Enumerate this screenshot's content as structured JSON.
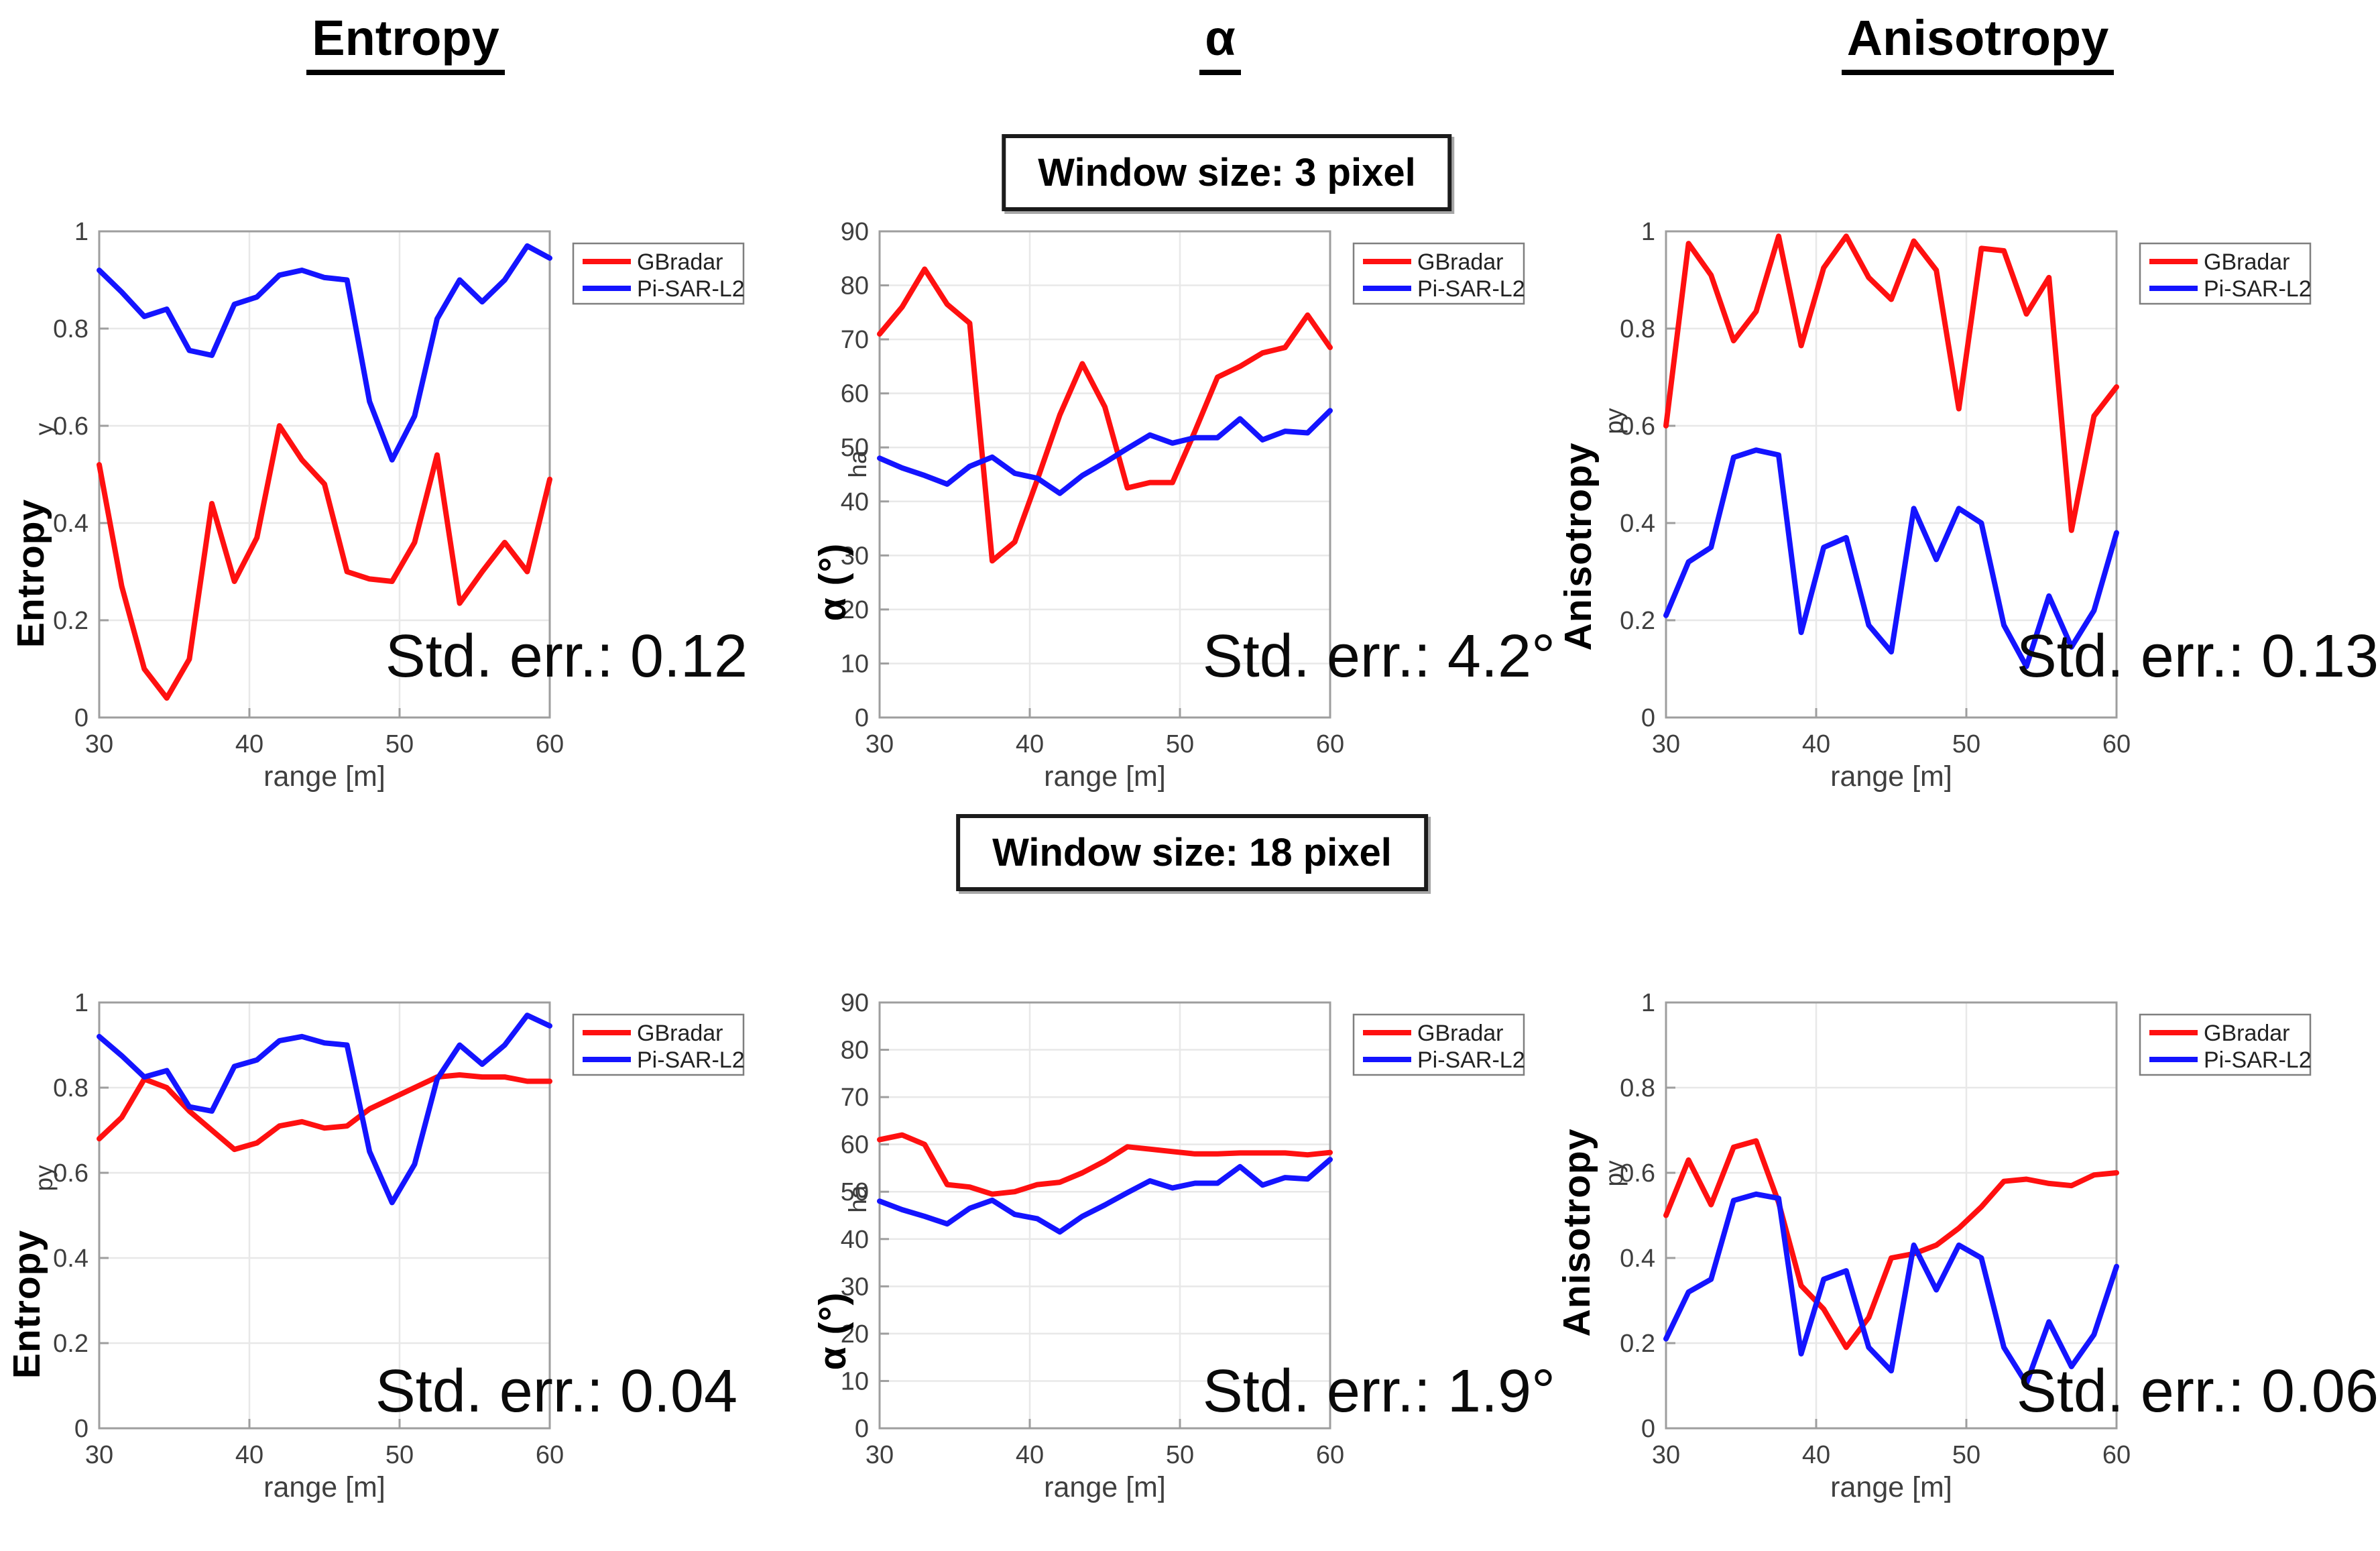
{
  "figure": {
    "column_titles": [
      {
        "text": "Entropy"
      },
      {
        "text": "α"
      },
      {
        "text": "Anisotropy"
      }
    ],
    "window_labels": [
      {
        "text": "Window size: 3 pixel"
      },
      {
        "text": "Window size: 18 pixel"
      }
    ]
  },
  "style": {
    "red": "#ff1010",
    "blue": "#1414ff",
    "grid": "#e8e8e8",
    "axis": "#9e9e9e",
    "tick_label": "#3f3f3f",
    "legend_border": "#7f7f7f",
    "legend_text": "#222222"
  },
  "chart_data": [
    {
      "type": "line",
      "window": "3 pixel",
      "quantity": "Entropy",
      "ylabel_bold": "Entropy",
      "ylabel_fragment": "y",
      "xlabel": "range [m]",
      "std_err_label": "Std. err.: 0.12",
      "xlim": [
        30,
        60
      ],
      "ylim": [
        0,
        1
      ],
      "xticks": [
        30,
        40,
        50,
        60
      ],
      "yticks": [
        0,
        0.2,
        0.4,
        0.6,
        0.8,
        1
      ],
      "x": [
        30,
        31.5,
        33,
        34.5,
        36,
        37.5,
        39,
        40.5,
        42,
        43.5,
        45,
        46.5,
        48,
        49.5,
        51,
        52.5,
        54,
        55.5,
        57,
        58.5,
        60
      ],
      "series": [
        {
          "name": "GBradar",
          "color": "#ff1010",
          "values": [
            0.52,
            0.27,
            0.1,
            0.04,
            0.12,
            0.44,
            0.28,
            0.37,
            0.6,
            0.53,
            0.48,
            0.3,
            0.285,
            0.28,
            0.36,
            0.54,
            0.235,
            0.3,
            0.36,
            0.3,
            0.49
          ]
        },
        {
          "name": "Pi-SAR-L2",
          "color": "#1414ff",
          "values": [
            0.92,
            0.875,
            0.825,
            0.84,
            0.755,
            0.745,
            0.85,
            0.865,
            0.91,
            0.92,
            0.905,
            0.9,
            0.65,
            0.53,
            0.62,
            0.82,
            0.9,
            0.855,
            0.9,
            0.97,
            0.945
          ]
        }
      ]
    },
    {
      "type": "line",
      "window": "3 pixel",
      "quantity": "alpha",
      "ylabel_bold": "α (°)",
      "ylabel_fragment": "ha",
      "xlabel": "range [m]",
      "std_err_label": "Std. err.: 4.2°",
      "xlim": [
        30,
        60
      ],
      "ylim": [
        0,
        90
      ],
      "xticks": [
        30,
        40,
        50,
        60
      ],
      "yticks": [
        0,
        10,
        20,
        30,
        40,
        50,
        60,
        70,
        80,
        90
      ],
      "x": [
        30,
        31.5,
        33,
        34.5,
        36,
        37.5,
        39,
        40.5,
        42,
        43.5,
        45,
        46.5,
        48,
        49.5,
        51,
        52.5,
        54,
        55.5,
        57,
        58.5,
        60
      ],
      "series": [
        {
          "name": "GBradar",
          "color": "#ff1010",
          "values": [
            71,
            76,
            83,
            76.5,
            73,
            29,
            32.5,
            44,
            56,
            65.5,
            57.5,
            42.5,
            43.5,
            43.5,
            53,
            63,
            65,
            67.5,
            68.5,
            74.5,
            68.5
          ]
        },
        {
          "name": "Pi-SAR-L2",
          "color": "#1414ff",
          "values": [
            48,
            46.2,
            44.8,
            43.2,
            46.5,
            48.2,
            45.2,
            44.3,
            41.5,
            44.8,
            47.2,
            49.8,
            52.3,
            50.8,
            51.8,
            51.8,
            55.3,
            51.4,
            53,
            52.7,
            56.8
          ]
        }
      ]
    },
    {
      "type": "line",
      "window": "3 pixel",
      "quantity": "Anisotropy",
      "ylabel_bold": "Anisotropy",
      "ylabel_fragment": "py",
      "xlabel": "range [m]",
      "std_err_label": "Std. err.: 0.13",
      "xlim": [
        30,
        60
      ],
      "ylim": [
        0,
        1
      ],
      "xticks": [
        30,
        40,
        50,
        60
      ],
      "yticks": [
        0,
        0.2,
        0.4,
        0.6,
        0.8,
        1
      ],
      "x": [
        30,
        31.5,
        33,
        34.5,
        36,
        37.5,
        39,
        40.5,
        42,
        43.5,
        45,
        46.5,
        48,
        49.5,
        51,
        52.5,
        54,
        55.5,
        57,
        58.5,
        60
      ],
      "series": [
        {
          "name": "GBradar",
          "color": "#ff1010",
          "values": [
            0.6,
            0.975,
            0.91,
            0.775,
            0.835,
            0.99,
            0.765,
            0.925,
            0.99,
            0.905,
            0.86,
            0.98,
            0.92,
            0.635,
            0.965,
            0.96,
            0.83,
            0.905,
            0.385,
            0.62,
            0.68
          ]
        },
        {
          "name": "Pi-SAR-L2",
          "color": "#1414ff",
          "values": [
            0.21,
            0.32,
            0.35,
            0.535,
            0.55,
            0.54,
            0.175,
            0.35,
            0.37,
            0.19,
            0.135,
            0.43,
            0.325,
            0.43,
            0.4,
            0.19,
            0.105,
            0.25,
            0.145,
            0.22,
            0.38
          ]
        }
      ]
    },
    {
      "type": "line",
      "window": "18 pixel",
      "quantity": "Entropy",
      "ylabel_bold": "Entropy",
      "ylabel_fragment": "py",
      "xlabel": "range [m]",
      "std_err_label": "Std. err.: 0.04",
      "xlim": [
        30,
        60
      ],
      "ylim": [
        0,
        1
      ],
      "xticks": [
        30,
        40,
        50,
        60
      ],
      "yticks": [
        0,
        0.2,
        0.4,
        0.6,
        0.8,
        1
      ],
      "x": [
        30,
        31.5,
        33,
        34.5,
        36,
        37.5,
        39,
        40.5,
        42,
        43.5,
        45,
        46.5,
        48,
        49.5,
        51,
        52.5,
        54,
        55.5,
        57,
        58.5,
        60
      ],
      "series": [
        {
          "name": "GBradar",
          "color": "#ff1010",
          "values": [
            0.68,
            0.73,
            0.82,
            0.8,
            0.745,
            0.7,
            0.655,
            0.67,
            0.71,
            0.72,
            0.705,
            0.71,
            0.75,
            0.775,
            0.8,
            0.825,
            0.83,
            0.825,
            0.825,
            0.815,
            0.815
          ]
        },
        {
          "name": "Pi-SAR-L2",
          "color": "#1414ff",
          "values": [
            0.92,
            0.875,
            0.825,
            0.84,
            0.755,
            0.745,
            0.85,
            0.865,
            0.91,
            0.92,
            0.905,
            0.9,
            0.65,
            0.53,
            0.62,
            0.82,
            0.9,
            0.855,
            0.9,
            0.97,
            0.945
          ]
        }
      ]
    },
    {
      "type": "line",
      "window": "18 pixel",
      "quantity": "alpha",
      "ylabel_bold": "α (°)",
      "ylabel_fragment": "ha",
      "xlabel": "range [m]",
      "std_err_label": "Std. err.: 1.9°",
      "xlim": [
        30,
        60
      ],
      "ylim": [
        0,
        90
      ],
      "xticks": [
        30,
        40,
        50,
        60
      ],
      "yticks": [
        0,
        10,
        20,
        30,
        40,
        50,
        60,
        70,
        80,
        90
      ],
      "x": [
        30,
        31.5,
        33,
        34.5,
        36,
        37.5,
        39,
        40.5,
        42,
        43.5,
        45,
        46.5,
        48,
        49.5,
        51,
        52.5,
        54,
        55.5,
        57,
        58.5,
        60
      ],
      "series": [
        {
          "name": "GBradar",
          "color": "#ff1010",
          "values": [
            61,
            62,
            60,
            51.5,
            51,
            49.5,
            50,
            51.5,
            52,
            54,
            56.5,
            59.5,
            59,
            58.5,
            58,
            58,
            58.2,
            58.2,
            58.2,
            57.8,
            58.3
          ]
        },
        {
          "name": "Pi-SAR-L2",
          "color": "#1414ff",
          "values": [
            48,
            46.2,
            44.8,
            43.2,
            46.5,
            48.2,
            45.2,
            44.3,
            41.5,
            44.8,
            47.2,
            49.8,
            52.3,
            50.8,
            51.8,
            51.8,
            55.3,
            51.4,
            53,
            52.7,
            56.8
          ]
        }
      ]
    },
    {
      "type": "line",
      "window": "18 pixel",
      "quantity": "Anisotropy",
      "ylabel_bold": "Anisotropy",
      "ylabel_fragment": "py",
      "xlabel": "range [m]",
      "std_err_label": "Std. err.: 0.06",
      "xlim": [
        30,
        60
      ],
      "ylim": [
        0,
        1
      ],
      "xticks": [
        30,
        40,
        50,
        60
      ],
      "yticks": [
        0,
        0.2,
        0.4,
        0.6,
        0.8,
        1
      ],
      "x": [
        30,
        31.5,
        33,
        34.5,
        36,
        37.5,
        39,
        40.5,
        42,
        43.5,
        45,
        46.5,
        48,
        49.5,
        51,
        52.5,
        54,
        55.5,
        57,
        58.5,
        60
      ],
      "series": [
        {
          "name": "GBradar",
          "color": "#ff1010",
          "values": [
            0.5,
            0.63,
            0.525,
            0.66,
            0.675,
            0.53,
            0.335,
            0.28,
            0.19,
            0.26,
            0.4,
            0.41,
            0.43,
            0.47,
            0.52,
            0.58,
            0.585,
            0.575,
            0.57,
            0.595,
            0.6
          ]
        },
        {
          "name": "Pi-SAR-L2",
          "color": "#1414ff",
          "values": [
            0.21,
            0.32,
            0.35,
            0.535,
            0.55,
            0.54,
            0.175,
            0.35,
            0.37,
            0.19,
            0.135,
            0.43,
            0.325,
            0.43,
            0.4,
            0.19,
            0.105,
            0.25,
            0.145,
            0.22,
            0.38
          ]
        }
      ]
    }
  ]
}
